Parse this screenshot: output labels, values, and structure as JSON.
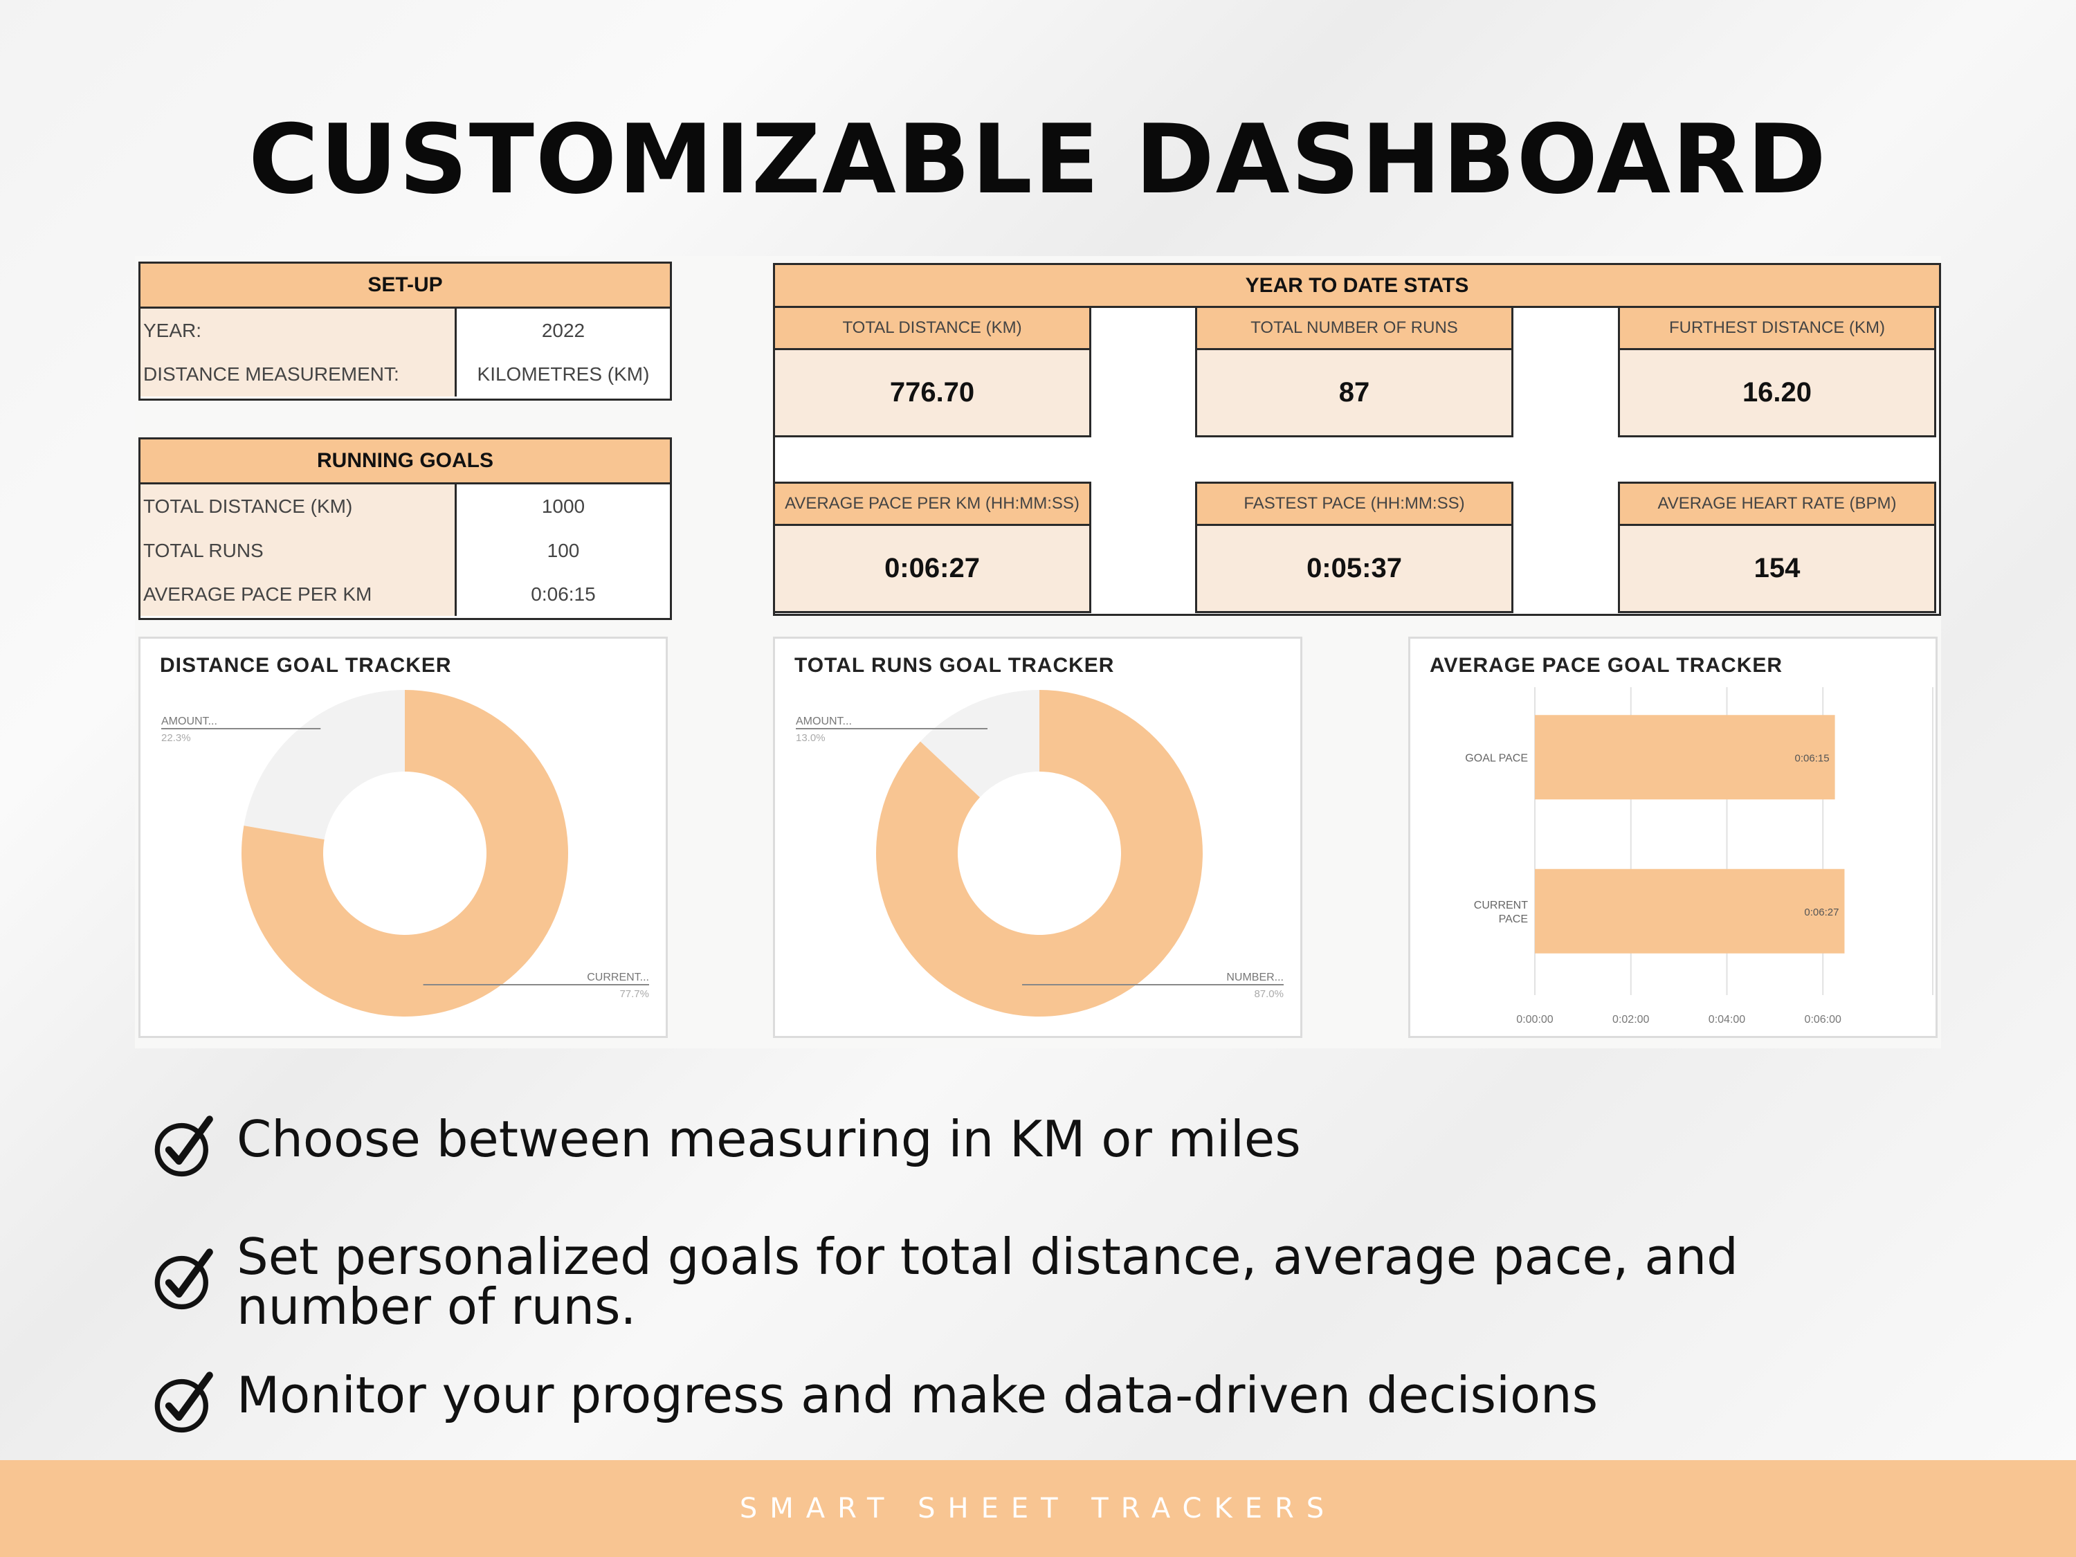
{
  "title": "CUSTOMIZABLE DASHBOARD",
  "setup": {
    "header": "SET-UP",
    "rows": [
      {
        "label": "YEAR:",
        "value": "2022"
      },
      {
        "label": "DISTANCE MEASUREMENT:",
        "value": "KILOMETRES (KM)"
      }
    ]
  },
  "goals": {
    "header": "RUNNING GOALS",
    "rows": [
      {
        "label": "TOTAL DISTANCE (KM)",
        "value": "1000"
      },
      {
        "label": "TOTAL RUNS",
        "value": "100"
      },
      {
        "label": "AVERAGE PACE PER KM",
        "value": "0:06:15"
      }
    ]
  },
  "ytd": {
    "header": "YEAR TO DATE STATS",
    "cards": [
      {
        "label": "TOTAL DISTANCE (KM)",
        "value": "776.70"
      },
      {
        "label": "TOTAL NUMBER OF RUNS",
        "value": "87"
      },
      {
        "label": "FURTHEST DISTANCE (KM)",
        "value": "16.20"
      },
      {
        "label": "AVERAGE PACE PER KM (HH:MM:SS)",
        "value": "0:06:27"
      },
      {
        "label": "FASTEST PACE (HH:MM:SS)",
        "value": "0:05:37"
      },
      {
        "label": "AVERAGE HEART RATE (BPM)",
        "value": "154"
      }
    ]
  },
  "colors": {
    "accent": "#f8c592",
    "accent_light": "#f9eadc",
    "remaining": "#f2f2f2"
  },
  "chart_data": [
    {
      "type": "pie",
      "title": "DISTANCE GOAL TRACKER",
      "donut": true,
      "labels": [
        "AMOUNT...",
        "CURRENT..."
      ],
      "values": [
        22.3,
        77.7
      ],
      "value_labels": [
        "22.3%",
        "77.7%"
      ]
    },
    {
      "type": "pie",
      "title": "TOTAL RUNS GOAL TRACKER",
      "donut": true,
      "labels": [
        "AMOUNT...",
        "NUMBER..."
      ],
      "values": [
        13.0,
        87.0
      ],
      "value_labels": [
        "13.0%",
        "87.0%"
      ]
    },
    {
      "type": "bar",
      "orientation": "horizontal",
      "title": "AVERAGE PACE GOAL TRACKER",
      "categories": [
        "GOAL PACE",
        "CURRENT PACE"
      ],
      "category_lines": [
        [
          "GOAL PACE"
        ],
        [
          "CURRENT",
          "PACE"
        ]
      ],
      "values": [
        "0:06:15",
        "0:06:27"
      ],
      "values_seconds": [
        375,
        387
      ],
      "xticks": [
        "0:00:00",
        "0:02:00",
        "0:04:00",
        "0:06:00"
      ],
      "xticks_seconds": [
        0,
        120,
        240,
        360
      ],
      "xlim_seconds": [
        0,
        480
      ],
      "grid": true
    }
  ],
  "features": [
    {
      "icon": "check-circle-icon",
      "lines": [
        "Choose between measuring in KM or miles"
      ]
    },
    {
      "icon": "check-circle-icon",
      "lines": [
        "Set personalized goals for total distance, average pace, and",
        "number of runs."
      ]
    },
    {
      "icon": "check-circle-icon",
      "lines": [
        "Monitor your progress and make data-driven decisions"
      ]
    }
  ],
  "footer": "SMART SHEET TRACKERS"
}
